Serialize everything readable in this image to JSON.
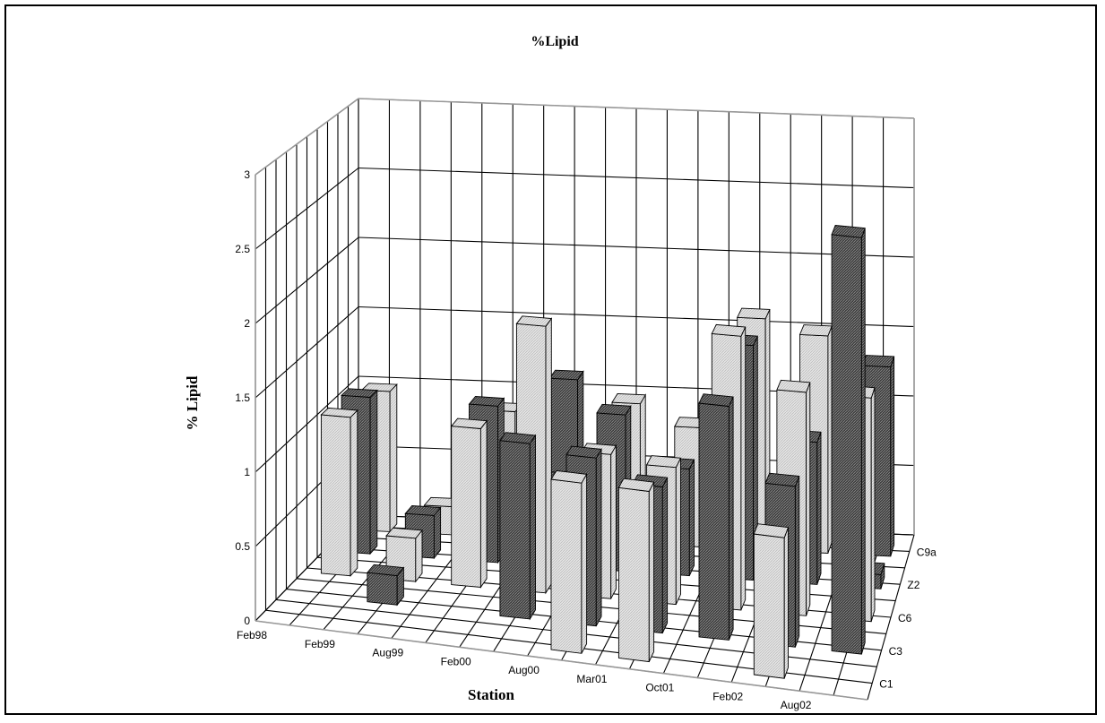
{
  "chart_data": {
    "type": "bar",
    "title": "%Lipid",
    "xlabel": "Station",
    "ylabel": "% Lipid",
    "ylim": [
      0,
      3
    ],
    "yticks": [
      "0",
      "0.5",
      "1",
      "1.5",
      "2",
      "2.5",
      "3"
    ],
    "categories": [
      "Feb98",
      "Feb99",
      "Aug99",
      "Feb00",
      "Aug00",
      "Mar01",
      "Oct01",
      "Feb02",
      "Aug02"
    ],
    "stations": [
      "C1",
      "C3",
      "C6",
      "Z2",
      "C9a"
    ],
    "series": [
      {
        "name": "C1",
        "values": [
          null,
          null,
          null,
          null,
          1.15,
          1.15,
          null,
          0.95,
          null
        ]
      },
      {
        "name": "C3",
        "values": [
          null,
          0.2,
          null,
          1.2,
          1.15,
          1.0,
          1.6,
          1.1,
          2.85
        ]
      },
      {
        "name": "C6",
        "values": [
          1.1,
          0.3,
          1.1,
          1.85,
          1.0,
          0.95,
          1.9,
          1.55,
          1.55
        ]
      },
      {
        "name": "Z2",
        "values": [
          1.1,
          0.3,
          1.1,
          0.6,
          1.1,
          0.75,
          1.65,
          1.0,
          0.1
        ]
      },
      {
        "name": "C9a",
        "values": [
          1.0,
          0.2,
          0.9,
          1.15,
          1.0,
          0.85,
          1.65,
          1.55,
          1.35
        ]
      }
    ],
    "colors": {
      "dark": "#3a3a3a",
      "light": "#e2e2e2"
    },
    "grid": true,
    "legend": "none"
  }
}
